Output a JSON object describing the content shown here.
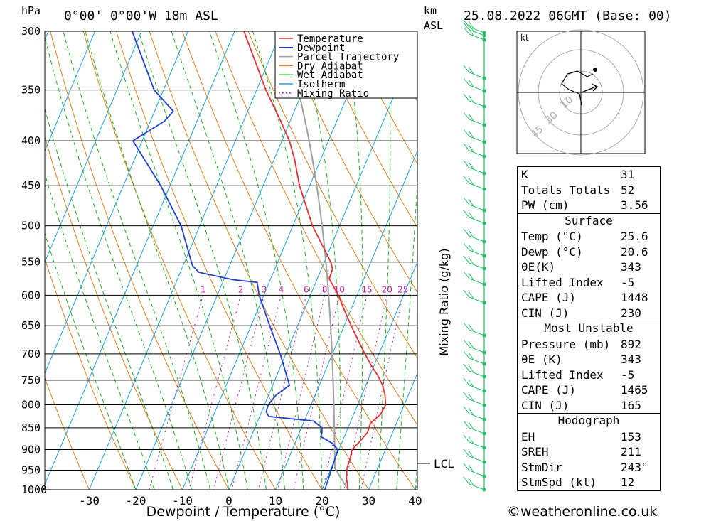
{
  "header": {
    "unit_left": "hPa",
    "location": "0°00' 0°00'W 18m ASL",
    "unit_km": "km",
    "unit_asl": "ASL",
    "datetime": "25.08.2022 06GMT (Base: 00)"
  },
  "chart_data": {
    "type": "line",
    "xlabel": "Dewpoint / Temperature (°C)",
    "ylabel_left": "hPa",
    "ylabel_right": "Mixing Ratio (g/kg)",
    "x_ticks": [
      -30,
      -20,
      -10,
      0,
      10,
      20,
      30,
      40
    ],
    "pressure_levels": [
      300,
      350,
      400,
      450,
      500,
      550,
      600,
      650,
      700,
      750,
      800,
      850,
      900,
      950,
      1000
    ],
    "xlim": [
      -40,
      40
    ],
    "ylim": [
      1000,
      300
    ],
    "legend": [
      "Temperature",
      "Dewpoint",
      "Parcel Trajectory",
      "Dry Adiabat",
      "Wet Adiabat",
      "Isotherm",
      "Mixing Ratio"
    ],
    "legend_position": "top-center",
    "mixing_ratio_labels": [
      "1",
      "2",
      "3",
      "4",
      "6",
      "8",
      "10",
      "15",
      "20",
      "25"
    ],
    "lcl_label": "LCL",
    "lcl_pressure": 945,
    "series": [
      {
        "name": "Temperature",
        "color": "#e03030",
        "points": [
          [
            1000,
            25.6
          ],
          [
            970,
            24.2
          ],
          [
            945,
            23.4
          ],
          [
            920,
            23.2
          ],
          [
            900,
            22.8
          ],
          [
            880,
            23.8
          ],
          [
            860,
            24.6
          ],
          [
            840,
            24.4
          ],
          [
            820,
            25.8
          ],
          [
            800,
            26.0
          ],
          [
            780,
            25.0
          ],
          [
            760,
            23.6
          ],
          [
            740,
            21.6
          ],
          [
            720,
            19.2
          ],
          [
            700,
            17.0
          ],
          [
            680,
            14.8
          ],
          [
            660,
            12.6
          ],
          [
            640,
            10.4
          ],
          [
            620,
            8.2
          ],
          [
            600,
            6.0
          ],
          [
            585,
            4.0
          ],
          [
            575,
            2.6
          ],
          [
            560,
            2.4
          ],
          [
            550,
            1.4
          ],
          [
            500,
            -5.8
          ],
          [
            450,
            -12.2
          ],
          [
            420,
            -15.6
          ],
          [
            400,
            -18.4
          ],
          [
            380,
            -22.0
          ],
          [
            350,
            -28.0
          ],
          [
            300,
            -38.0
          ]
        ]
      },
      {
        "name": "Dewpoint",
        "color": "#2040d0",
        "points": [
          [
            1000,
            20.6
          ],
          [
            950,
            20.2
          ],
          [
            900,
            19.8
          ],
          [
            885,
            18.0
          ],
          [
            870,
            15.0
          ],
          [
            860,
            14.8
          ],
          [
            850,
            14.4
          ],
          [
            835,
            12.0
          ],
          [
            825,
            2.0
          ],
          [
            815,
            1.0
          ],
          [
            800,
            0.8
          ],
          [
            780,
            1.6
          ],
          [
            760,
            3.6
          ],
          [
            700,
            -1.2
          ],
          [
            650,
            -6.0
          ],
          [
            600,
            -11.0
          ],
          [
            580,
            -12.6
          ],
          [
            576,
            -18.0
          ],
          [
            565,
            -26.0
          ],
          [
            555,
            -28.0
          ],
          [
            500,
            -34.0
          ],
          [
            450,
            -42.0
          ],
          [
            400,
            -52.0
          ],
          [
            380,
            -47.0
          ],
          [
            370,
            -46.0
          ],
          [
            350,
            -52.0
          ],
          [
            300,
            -62.0
          ]
        ]
      }
    ]
  },
  "hodograph": {
    "unit": "kt",
    "ring_labels": [
      "10",
      "30",
      "45"
    ]
  },
  "indices": {
    "k_label": "K",
    "k_value": "31",
    "tt_label": "Totals Totals",
    "tt_value": "52",
    "pw_label": "PW (cm)",
    "pw_value": "3.56"
  },
  "surface": {
    "title": "Surface",
    "temp_label": "Temp (°C)",
    "temp_value": "25.6",
    "dewp_label": "Dewp (°C)",
    "dewp_value": "20.6",
    "theta_label": "θE(K)",
    "theta_value": "343",
    "li_label": "Lifted Index",
    "li_value": "-5",
    "cape_label": "CAPE (J)",
    "cape_value": "1448",
    "cin_label": "CIN (J)",
    "cin_value": "230"
  },
  "most_unstable": {
    "title": "Most Unstable",
    "pressure_label": "Pressure (mb)",
    "pressure_value": "892",
    "theta_label": "θE (K)",
    "theta_value": "343",
    "li_label": "Lifted Index",
    "li_value": "-5",
    "cape_label": "CAPE (J)",
    "cape_value": "1465",
    "cin_label": "CIN (J)",
    "cin_value": "165"
  },
  "hodograph_table": {
    "title": "Hodograph",
    "eh_label": "EH",
    "eh_value": "153",
    "sreh_label": "SREH",
    "sreh_value": "211",
    "stmdir_label": "StmDir",
    "stmdir_value": "243°",
    "stmspd_label": "StmSpd (kt)",
    "stmspd_value": "12"
  },
  "credit": "©weatheronline.co.uk",
  "colors": {
    "temperature": "#e03030",
    "dewpoint": "#2040d0",
    "parcel": "#a0a0a0",
    "dry_adiabat": "#e08020",
    "wet_adiabat": "#20b020",
    "isotherm": "#20a0e0",
    "mixing_ratio": "#c020a0",
    "wind": "#20c060"
  }
}
